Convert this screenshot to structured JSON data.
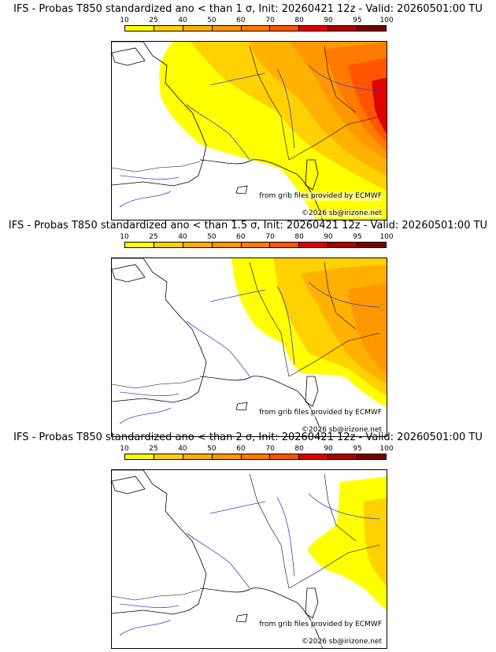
{
  "legend": {
    "ticks": [
      "10",
      "25",
      "40",
      "50",
      "60",
      "70",
      "80",
      "90",
      "95",
      "100"
    ],
    "colors": [
      "#ffff00",
      "#ffd100",
      "#ffb000",
      "#ff9800",
      "#ff7a00",
      "#ff5500",
      "#e00000",
      "#b00000",
      "#7a0000"
    ]
  },
  "panels": [
    {
      "title": "IFS - Probas T850  standardized ano < than 1 σ, Init: 20260421 12z - Valid: 20260501:00 TU",
      "credit_source": "from grib files provided by ECMWF",
      "credit_copyright": "©2026 sb@irizone.net"
    },
    {
      "title": "IFS - Probas T850  standardized ano < than 1.5 σ, Init: 20260421 12z - Valid: 20260501:00 TU",
      "credit_source": "from grib files provided by ECMWF",
      "credit_copyright": "©2026 sb@irizone.net"
    },
    {
      "title": "IFS - Probas T850  standardized ano < than 2 σ, Init: 20260421 12z - Valid: 20260501:00 TU",
      "credit_source": "from grib files provided by ECMWF",
      "credit_copyright": "©2026 sb@irizone.net"
    }
  ]
}
